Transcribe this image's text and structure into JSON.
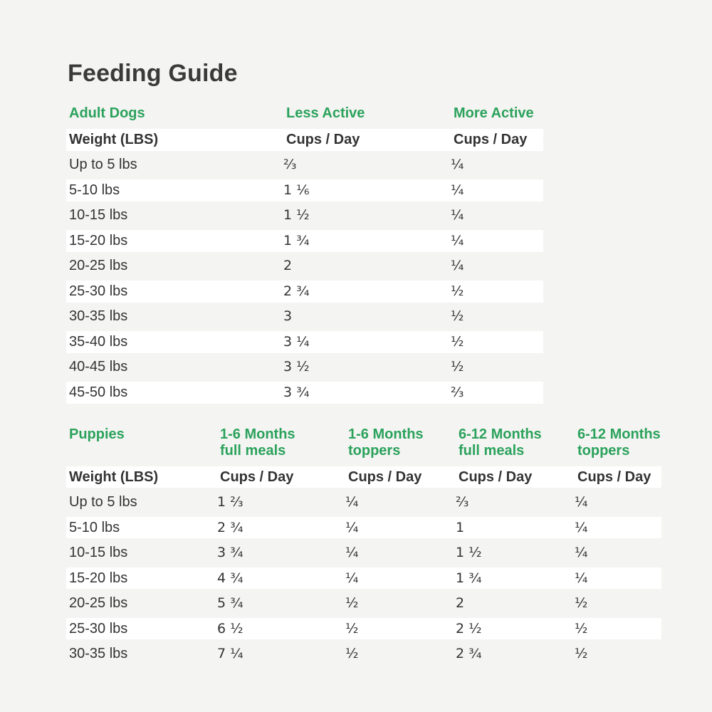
{
  "page": {
    "title": "Feeding Guide"
  },
  "colors": {
    "page_background": "#f4f4f2",
    "row_band_white": "#ffffff",
    "accent_green": "#2ba25c",
    "text_dark": "#333333"
  },
  "chart_data": [
    {
      "type": "table",
      "section": "Adult Dogs",
      "group_headers": [
        "Adult Dogs",
        "Less Active",
        "More Active"
      ],
      "column_headers": [
        "Weight (LBS)",
        "Cups / Day",
        "Cups / Day"
      ],
      "rows": [
        [
          "Up to 5 lbs",
          "⅔",
          "¼"
        ],
        [
          "5-10 lbs",
          "1 ⅙",
          "¼"
        ],
        [
          "10-15 lbs",
          "1 ½",
          "¼"
        ],
        [
          "15-20 lbs",
          "1 ¾",
          "¼"
        ],
        [
          "20-25 lbs",
          "2",
          "¼"
        ],
        [
          "25-30 lbs",
          "2 ¾",
          "½"
        ],
        [
          "30-35 lbs",
          "3",
          "½"
        ],
        [
          "35-40 lbs",
          "3 ¼",
          "½"
        ],
        [
          "40-45 lbs",
          "3 ½",
          "½"
        ],
        [
          "45-50 lbs",
          "3 ¾",
          "⅔"
        ]
      ]
    },
    {
      "type": "table",
      "section": "Puppies",
      "group_headers": [
        "Puppies",
        "1-6 Months\nfull meals",
        "1-6 Months\ntoppers",
        "6-12 Months\nfull meals",
        "6-12 Months\ntoppers"
      ],
      "column_headers": [
        "Weight (LBS)",
        "Cups / Day",
        "Cups / Day",
        "Cups / Day",
        "Cups / Day"
      ],
      "rows": [
        [
          "Up to 5 lbs",
          "1 ⅔",
          "¼",
          "⅔",
          "¼"
        ],
        [
          "5-10 lbs",
          "2 ¾",
          "¼",
          "1",
          "¼"
        ],
        [
          "10-15 lbs",
          "3 ¾",
          "¼",
          "1 ½",
          "¼"
        ],
        [
          "15-20 lbs",
          "4 ¾",
          "¼",
          "1 ¾",
          "¼"
        ],
        [
          "20-25 lbs",
          "5 ¾",
          "½",
          "2",
          "½"
        ],
        [
          "25-30 lbs",
          "6 ½",
          "½",
          "2 ½",
          "½"
        ],
        [
          "30-35 lbs",
          "7 ¼",
          "½",
          "2 ¾",
          "½"
        ]
      ]
    }
  ]
}
